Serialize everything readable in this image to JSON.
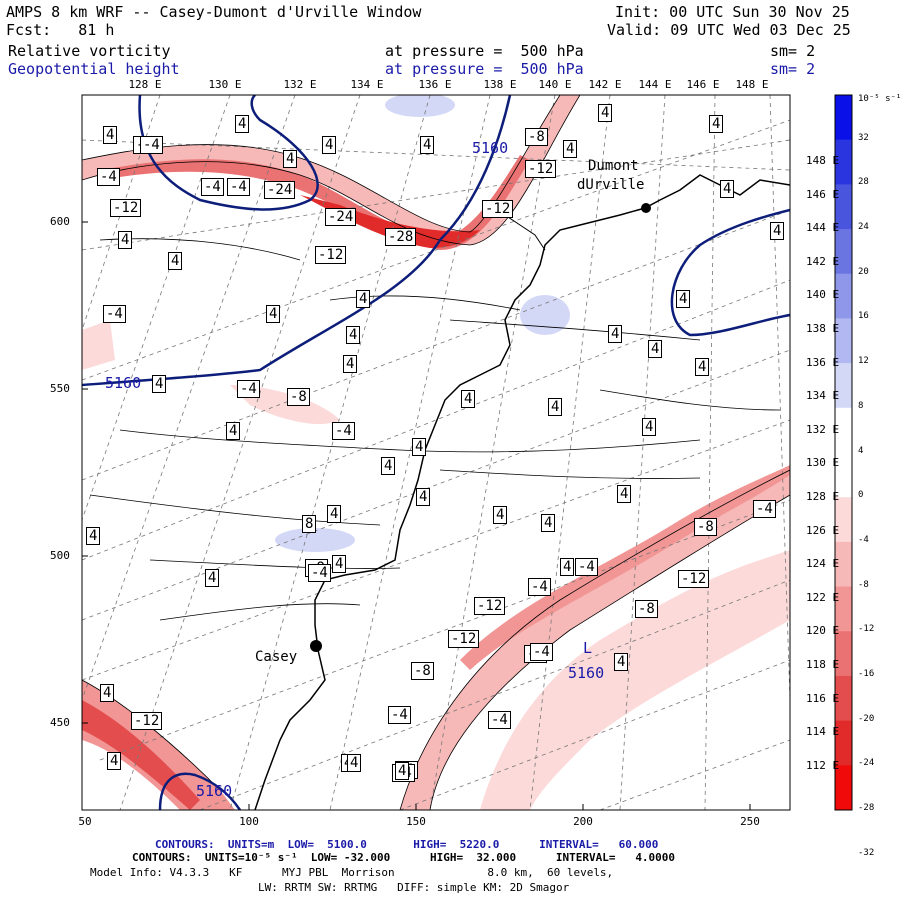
{
  "header": {
    "line1_left": "AMPS 8 km WRF -- Casey-Dumont d'Urville Window",
    "line1_right": "Init: 00 UTC Sun 30 Nov 25",
    "line2_left": "Fcst:   81 h",
    "line2_right": "Valid: 09 UTC Wed 03 Dec 25",
    "field1_name": "Relative vorticity",
    "field1_level": "at pressure =  500 hPa",
    "field1_sm": "sm= 2",
    "field2_name": "Geopotential height",
    "field2_level": "at pressure =  500 hPa",
    "field2_sm": "sm= 2"
  },
  "longitude_labels": [
    "128 E",
    "130 E",
    "132 E",
    "134 E",
    "136 E",
    "138 E",
    "140 E",
    "142 E",
    "144 E",
    "146 E",
    "148 E"
  ],
  "right_lon_labels": [
    "148 E",
    "146 E",
    "144 E",
    "142 E",
    "140 E",
    "138 E",
    "136 E",
    "134 E",
    "132 E",
    "130 E",
    "128 E",
    "126 E",
    "124 E",
    "122 E",
    "120 E",
    "118 E",
    "116 E",
    "114 E",
    "112 E"
  ],
  "x_axis": [
    "50",
    "100",
    "150",
    "200",
    "250"
  ],
  "y_axis": [
    "600",
    "550",
    "500",
    "450"
  ],
  "colorbar": {
    "unit_label": "10⁻⁵ s⁻¹",
    "ticks": [
      "32",
      "28",
      "24",
      "20",
      "16",
      "12",
      "8",
      "4",
      "0",
      "-4",
      "-8",
      "-12",
      "-16",
      "-20",
      "-24",
      "-28",
      "-32"
    ],
    "colors": [
      "#0a10e8",
      "#2a35e0",
      "#4a55dd",
      "#6b75e2",
      "#8f97ea",
      "#b2b8f1",
      "#d4d8f7",
      "#ffffff",
      "#ffffff",
      "#fcdada",
      "#f7b8b8",
      "#f19595",
      "#ea7272",
      "#e44d4d",
      "#e12a2a",
      "#f00a0a"
    ]
  },
  "places": {
    "station1": "Dumont",
    "station1b": "dUrville",
    "station2": "Casey",
    "low_label": "L",
    "low_value": "5160"
  },
  "height_labels": [
    "5160",
    "5160",
    "5160"
  ],
  "vort_labels": [
    "4",
    "-4",
    "4",
    "-4",
    "4",
    "-4",
    "-4",
    "-4",
    "-12",
    "-24",
    "-24",
    "-28",
    "-12",
    "4",
    "-12",
    "-8",
    "4",
    "4",
    "4",
    "4",
    "-12",
    "4",
    "4",
    "4",
    "-4",
    "4",
    "4",
    "4",
    "4",
    "4",
    "4",
    "4",
    "4",
    "4",
    "4",
    "-4",
    "-8",
    "4",
    "-4",
    "4",
    "4",
    "4",
    "4",
    "4",
    "4",
    "4",
    "4",
    "4",
    "4",
    "8",
    "4",
    "4",
    "-8",
    "-4",
    "4",
    "4",
    "-4",
    "-12",
    "-4",
    "-8",
    "-12",
    "-8",
    "-4",
    "-12",
    "-4",
    "-8",
    "-4",
    "4",
    "4",
    "-4",
    "-8",
    "-12",
    "4",
    "4",
    "-4",
    "4",
    "-4",
    "4"
  ],
  "footer": {
    "line1": "CONTOURS:  UNITS=m  LOW=  5100.0       HIGH=  5220.0      INTERVAL=   60.000",
    "line2": "CONTOURS:  UNITS=10⁻⁵ s⁻¹  LOW= -32.000      HIGH=  32.000      INTERVAL=   4.0000",
    "line3": "Model Info: V4.3.3   KF      MYJ PBL  Morrison              8.0 km,  60 levels,",
    "line4": "LW: RRTM SW: RRTMG   DIFF: simple KM: 2D Smagor"
  }
}
